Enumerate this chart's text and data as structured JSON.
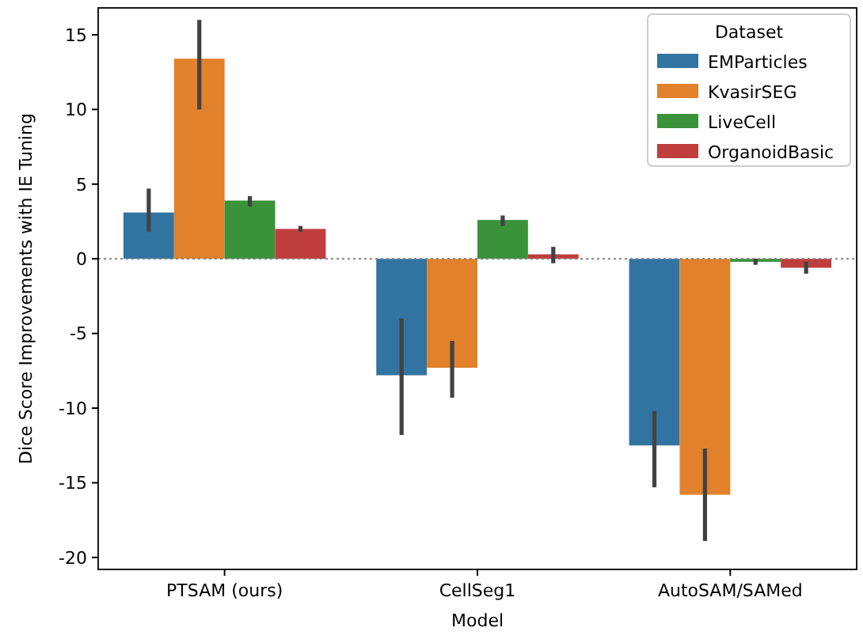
{
  "chart_data": {
    "type": "bar",
    "xlabel": "Model",
    "ylabel": "Dice Score Improvements with IE Tuning",
    "legend_title": "Dataset",
    "legend": "top right",
    "categories": [
      "PTSAM (ours)",
      "CellSeg1",
      "AutoSAM/SAMed"
    ],
    "series": [
      {
        "name": "EMParticles",
        "color": "#3274a1",
        "values": [
          3.1,
          -7.8,
          -12.5
        ],
        "errors": [
          [
            1.8,
            4.7
          ],
          [
            -11.8,
            -4.0
          ],
          [
            -15.3,
            -10.2
          ]
        ]
      },
      {
        "name": "KvasirSEG",
        "color": "#e1812c",
        "values": [
          13.4,
          -7.3,
          -15.8
        ],
        "errors": [
          [
            10.0,
            16.0
          ],
          [
            -9.3,
            -5.5
          ],
          [
            -18.9,
            -12.7
          ]
        ]
      },
      {
        "name": "LiveCell",
        "color": "#3a923a",
        "values": [
          3.9,
          2.6,
          -0.2
        ],
        "errors": [
          [
            3.5,
            4.2
          ],
          [
            2.2,
            2.9
          ],
          [
            -0.4,
            0.0
          ]
        ]
      },
      {
        "name": "OrganoidBasic",
        "color": "#c03d3e",
        "values": [
          2.0,
          0.3,
          -0.6
        ],
        "errors": [
          [
            1.8,
            2.2
          ],
          [
            -0.3,
            0.8
          ],
          [
            -1.0,
            -0.2
          ]
        ]
      }
    ],
    "ylim": [
      -20.8,
      16.8
    ],
    "yticks": [
      -20,
      -15,
      -10,
      -5,
      0,
      5,
      10,
      15
    ],
    "ref_lines": [
      {
        "axis": "y",
        "value": 0,
        "color": "#808080",
        "line_style": "dotted"
      }
    ]
  }
}
